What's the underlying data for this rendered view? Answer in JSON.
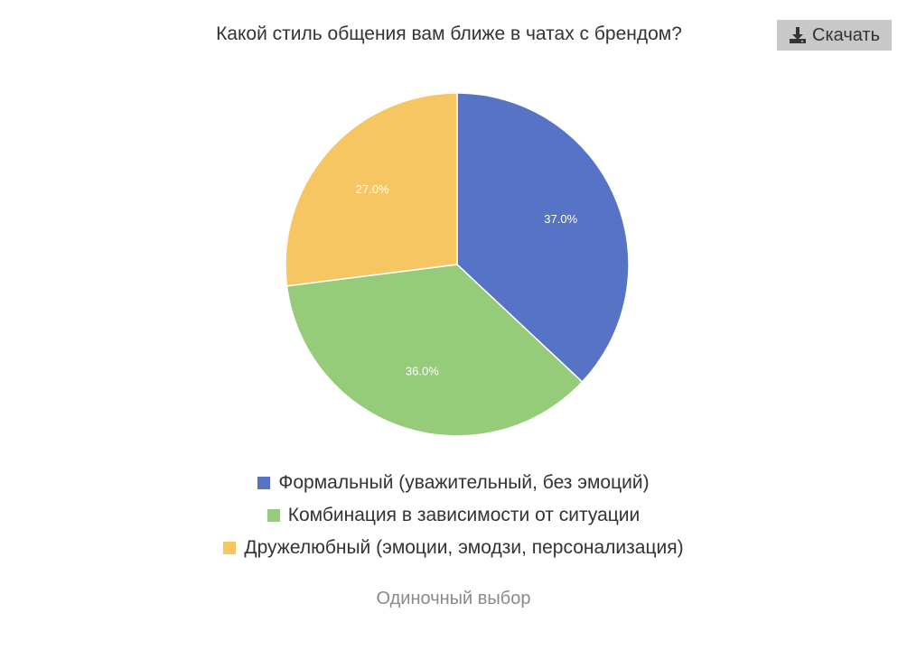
{
  "header": {
    "download_label": "Скачать",
    "download_icon": "download-icon"
  },
  "chart_data": {
    "type": "pie",
    "title": "Какой стиль общения вам ближе в чатах с брендом?",
    "categories": [
      "Формальный (уважительный, без эмоций)",
      "Комбинация в зависимости от ситуации",
      "Дружелюбный (эмоции, эмодзи, персонализация)"
    ],
    "values": [
      37.0,
      36.0,
      27.0
    ],
    "labels": [
      "37.0%",
      "36.0%",
      "27.0%"
    ],
    "colors": [
      "#5673c5",
      "#96cb79",
      "#f6c663"
    ],
    "legend_position": "bottom"
  },
  "footer": {
    "question_type": "Одиночный выбор"
  }
}
